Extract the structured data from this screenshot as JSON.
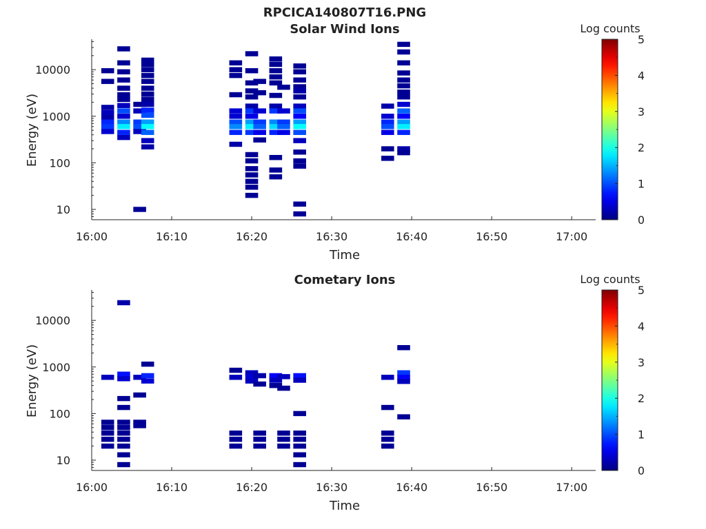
{
  "figure_title": "RPCICA140807T16.PNG",
  "chart_data": [
    {
      "type": "heatmap",
      "title": "Solar Wind Ions",
      "xlabel": "Time",
      "ylabel": "Energy (eV)",
      "yscale": "log",
      "xlim": [
        "16:00",
        "17:03"
      ],
      "ylim": [
        6,
        45000
      ],
      "xticks": [
        "16:00",
        "16:10",
        "16:20",
        "16:30",
        "16:40",
        "16:50",
        "17:00"
      ],
      "yticks": [
        "10",
        "100",
        "1000",
        "10000"
      ],
      "colorbar": {
        "label": "Log counts",
        "min": 0,
        "max": 5,
        "ticks": [
          "0",
          "1",
          "2",
          "3",
          "4",
          "5"
        ],
        "colormap": "jet"
      },
      "bin_minutes": 1.6,
      "cells": [
        {
          "t": "16:02",
          "e": 9500,
          "v": 0.1
        },
        {
          "t": "16:02",
          "e": 5600,
          "v": 0.1
        },
        {
          "t": "16:02",
          "e": 1550,
          "v": 0.2
        },
        {
          "t": "16:02",
          "e": 1200,
          "v": 0.3
        },
        {
          "t": "16:02",
          "e": 950,
          "v": 0.2
        },
        {
          "t": "16:02",
          "e": 750,
          "v": 0.8
        },
        {
          "t": "16:02",
          "e": 600,
          "v": 0.9
        },
        {
          "t": "16:02",
          "e": 470,
          "v": 0.4
        },
        {
          "t": "16:04",
          "e": 28000,
          "v": 0.1
        },
        {
          "t": "16:04",
          "e": 14000,
          "v": 0.1
        },
        {
          "t": "16:04",
          "e": 9000,
          "v": 0.1
        },
        {
          "t": "16:04",
          "e": 6000,
          "v": 0.1
        },
        {
          "t": "16:04",
          "e": 4000,
          "v": 0.1
        },
        {
          "t": "16:04",
          "e": 2900,
          "v": 0.1
        },
        {
          "t": "16:04",
          "e": 2300,
          "v": 0.1
        },
        {
          "t": "16:04",
          "e": 1700,
          "v": 0.3
        },
        {
          "t": "16:04",
          "e": 1300,
          "v": 1.0
        },
        {
          "t": "16:04",
          "e": 1000,
          "v": 0.4
        },
        {
          "t": "16:04",
          "e": 750,
          "v": 1.3
        },
        {
          "t": "16:04",
          "e": 600,
          "v": 1.8
        },
        {
          "t": "16:04",
          "e": 450,
          "v": 0.8
        },
        {
          "t": "16:04",
          "e": 350,
          "v": 0.3
        },
        {
          "t": "16:06",
          "e": 1800,
          "v": 0.1
        },
        {
          "t": "16:06",
          "e": 1300,
          "v": 0.3
        },
        {
          "t": "16:06",
          "e": 750,
          "v": 0.9
        },
        {
          "t": "16:06",
          "e": 600,
          "v": 1.0
        },
        {
          "t": "16:06",
          "e": 470,
          "v": 0.3
        },
        {
          "t": "16:06",
          "e": 10,
          "v": 0.1
        },
        {
          "t": "16:07",
          "e": 16000,
          "v": 0.1
        },
        {
          "t": "16:07",
          "e": 13000,
          "v": 0.1
        },
        {
          "t": "16:07",
          "e": 10000,
          "v": 0.1
        },
        {
          "t": "16:07",
          "e": 7500,
          "v": 0.1
        },
        {
          "t": "16:07",
          "e": 5600,
          "v": 0.1
        },
        {
          "t": "16:07",
          "e": 4000,
          "v": 0.1
        },
        {
          "t": "16:07",
          "e": 3000,
          "v": 0.1
        },
        {
          "t": "16:07",
          "e": 2300,
          "v": 0.1
        },
        {
          "t": "16:07",
          "e": 1800,
          "v": 0.2
        },
        {
          "t": "16:07",
          "e": 1350,
          "v": 0.8
        },
        {
          "t": "16:07",
          "e": 1050,
          "v": 1.0
        },
        {
          "t": "16:07",
          "e": 750,
          "v": 1.4
        },
        {
          "t": "16:07",
          "e": 600,
          "v": 1.9
        },
        {
          "t": "16:07",
          "e": 450,
          "v": 1.1
        },
        {
          "t": "16:07",
          "e": 300,
          "v": 0.3
        },
        {
          "t": "16:07",
          "e": 220,
          "v": 0.2
        },
        {
          "t": "16:18",
          "e": 14000,
          "v": 0.1
        },
        {
          "t": "16:18",
          "e": 10000,
          "v": 0.1
        },
        {
          "t": "16:18",
          "e": 7500,
          "v": 0.1
        },
        {
          "t": "16:18",
          "e": 2900,
          "v": 0.1
        },
        {
          "t": "16:18",
          "e": 1300,
          "v": 0.4
        },
        {
          "t": "16:18",
          "e": 1000,
          "v": 0.4
        },
        {
          "t": "16:18",
          "e": 750,
          "v": 1.0
        },
        {
          "t": "16:18",
          "e": 600,
          "v": 1.3
        },
        {
          "t": "16:18",
          "e": 450,
          "v": 0.8
        },
        {
          "t": "16:18",
          "e": 250,
          "v": 0.2
        },
        {
          "t": "16:20",
          "e": 22000,
          "v": 0.1
        },
        {
          "t": "16:20",
          "e": 9500,
          "v": 0.1
        },
        {
          "t": "16:20",
          "e": 5200,
          "v": 0.1
        },
        {
          "t": "16:20",
          "e": 3500,
          "v": 0.1
        },
        {
          "t": "16:20",
          "e": 2600,
          "v": 0.1
        },
        {
          "t": "16:20",
          "e": 1650,
          "v": 0.2
        },
        {
          "t": "16:20",
          "e": 1300,
          "v": 0.9
        },
        {
          "t": "16:20",
          "e": 1000,
          "v": 0.5
        },
        {
          "t": "16:20",
          "e": 750,
          "v": 1.4
        },
        {
          "t": "16:20",
          "e": 600,
          "v": 1.8
        },
        {
          "t": "16:20",
          "e": 450,
          "v": 0.9
        },
        {
          "t": "16:20",
          "e": 150,
          "v": 0.1
        },
        {
          "t": "16:20",
          "e": 110,
          "v": 0.1
        },
        {
          "t": "16:20",
          "e": 75,
          "v": 0.1
        },
        {
          "t": "16:20",
          "e": 55,
          "v": 0.1
        },
        {
          "t": "16:20",
          "e": 40,
          "v": 0.1
        },
        {
          "t": "16:20",
          "e": 30,
          "v": 0.1
        },
        {
          "t": "16:20",
          "e": 20,
          "v": 0.1
        },
        {
          "t": "16:21",
          "e": 5600,
          "v": 0.1
        },
        {
          "t": "16:21",
          "e": 3200,
          "v": 0.1
        },
        {
          "t": "16:21",
          "e": 1300,
          "v": 0.4
        },
        {
          "t": "16:21",
          "e": 750,
          "v": 0.9
        },
        {
          "t": "16:21",
          "e": 600,
          "v": 1.1
        },
        {
          "t": "16:21",
          "e": 450,
          "v": 0.5
        },
        {
          "t": "16:21",
          "e": 310,
          "v": 0.1
        },
        {
          "t": "16:23",
          "e": 17000,
          "v": 0.1
        },
        {
          "t": "16:23",
          "e": 13000,
          "v": 0.1
        },
        {
          "t": "16:23",
          "e": 9500,
          "v": 0.1
        },
        {
          "t": "16:23",
          "e": 7000,
          "v": 0.1
        },
        {
          "t": "16:23",
          "e": 5200,
          "v": 0.1
        },
        {
          "t": "16:23",
          "e": 2800,
          "v": 0.1
        },
        {
          "t": "16:23",
          "e": 1650,
          "v": 0.2
        },
        {
          "t": "16:23",
          "e": 1300,
          "v": 0.9
        },
        {
          "t": "16:23",
          "e": 750,
          "v": 1.3
        },
        {
          "t": "16:23",
          "e": 600,
          "v": 1.7
        },
        {
          "t": "16:23",
          "e": 450,
          "v": 0.8
        },
        {
          "t": "16:23",
          "e": 130,
          "v": 0.1
        },
        {
          "t": "16:23",
          "e": 70,
          "v": 0.1
        },
        {
          "t": "16:23",
          "e": 50,
          "v": 0.1
        },
        {
          "t": "16:24",
          "e": 4200,
          "v": 0.1
        },
        {
          "t": "16:24",
          "e": 1300,
          "v": 0.4
        },
        {
          "t": "16:24",
          "e": 750,
          "v": 0.9
        },
        {
          "t": "16:24",
          "e": 600,
          "v": 1.1
        },
        {
          "t": "16:24",
          "e": 450,
          "v": 0.5
        },
        {
          "t": "16:26",
          "e": 12000,
          "v": 0.1
        },
        {
          "t": "16:26",
          "e": 9000,
          "v": 0.1
        },
        {
          "t": "16:26",
          "e": 6000,
          "v": 0.1
        },
        {
          "t": "16:26",
          "e": 4300,
          "v": 0.1
        },
        {
          "t": "16:26",
          "e": 3500,
          "v": 0.2
        },
        {
          "t": "16:26",
          "e": 2600,
          "v": 0.1
        },
        {
          "t": "16:26",
          "e": 1650,
          "v": 0.3
        },
        {
          "t": "16:26",
          "e": 1300,
          "v": 1.0
        },
        {
          "t": "16:26",
          "e": 1000,
          "v": 0.6
        },
        {
          "t": "16:26",
          "e": 750,
          "v": 1.4
        },
        {
          "t": "16:26",
          "e": 600,
          "v": 1.9
        },
        {
          "t": "16:26",
          "e": 450,
          "v": 1.0
        },
        {
          "t": "16:26",
          "e": 300,
          "v": 0.3
        },
        {
          "t": "16:26",
          "e": 170,
          "v": 0.1
        },
        {
          "t": "16:26",
          "e": 110,
          "v": 0.1
        },
        {
          "t": "16:26",
          "e": 85,
          "v": 0.1
        },
        {
          "t": "16:26",
          "e": 13,
          "v": 0.1
        },
        {
          "t": "16:26",
          "e": 8,
          "v": 0.1
        },
        {
          "t": "16:37",
          "e": 1650,
          "v": 0.2
        },
        {
          "t": "16:37",
          "e": 1000,
          "v": 0.4
        },
        {
          "t": "16:37",
          "e": 750,
          "v": 0.8
        },
        {
          "t": "16:37",
          "e": 600,
          "v": 1.0
        },
        {
          "t": "16:37",
          "e": 450,
          "v": 0.5
        },
        {
          "t": "16:37",
          "e": 200,
          "v": 0.1
        },
        {
          "t": "16:37",
          "e": 125,
          "v": 0.1
        },
        {
          "t": "16:39",
          "e": 35000,
          "v": 0.1
        },
        {
          "t": "16:39",
          "e": 24000,
          "v": 0.1
        },
        {
          "t": "16:39",
          "e": 14000,
          "v": 0.1
        },
        {
          "t": "16:39",
          "e": 8500,
          "v": 0.1
        },
        {
          "t": "16:39",
          "e": 6000,
          "v": 0.1
        },
        {
          "t": "16:39",
          "e": 4500,
          "v": 0.1
        },
        {
          "t": "16:39",
          "e": 3300,
          "v": 0.1
        },
        {
          "t": "16:39",
          "e": 2600,
          "v": 0.1
        },
        {
          "t": "16:39",
          "e": 1800,
          "v": 0.4
        },
        {
          "t": "16:39",
          "e": 1300,
          "v": 1.1
        },
        {
          "t": "16:39",
          "e": 1000,
          "v": 0.6
        },
        {
          "t": "16:39",
          "e": 750,
          "v": 1.4
        },
        {
          "t": "16:39",
          "e": 600,
          "v": 1.8
        },
        {
          "t": "16:39",
          "e": 450,
          "v": 0.8
        },
        {
          "t": "16:39",
          "e": 200,
          "v": 0.2
        },
        {
          "t": "16:39",
          "e": 165,
          "v": 0.1
        }
      ]
    },
    {
      "type": "heatmap",
      "title": "Cometary Ions",
      "xlabel": "Time",
      "ylabel": "Energy (eV)",
      "yscale": "log",
      "xlim": [
        "16:00",
        "17:03"
      ],
      "ylim": [
        6,
        45000
      ],
      "xticks": [
        "16:00",
        "16:10",
        "16:20",
        "16:30",
        "16:40",
        "16:50",
        "17:00"
      ],
      "yticks": [
        "10",
        "100",
        "1000",
        "10000"
      ],
      "colorbar": {
        "label": "Log counts",
        "min": 0,
        "max": 5,
        "ticks": [
          "0",
          "1",
          "2",
          "3",
          "4",
          "5"
        ],
        "colormap": "jet"
      },
      "bin_minutes": 1.6,
      "cells": [
        {
          "t": "16:02",
          "e": 600,
          "v": 0.3
        },
        {
          "t": "16:02",
          "e": 65,
          "v": 0.1
        },
        {
          "t": "16:02",
          "e": 50,
          "v": 0.1
        },
        {
          "t": "16:02",
          "e": 38,
          "v": 0.1
        },
        {
          "t": "16:02",
          "e": 28,
          "v": 0.1
        },
        {
          "t": "16:02",
          "e": 20,
          "v": 0.1
        },
        {
          "t": "16:04",
          "e": 24000,
          "v": 0.2
        },
        {
          "t": "16:04",
          "e": 700,
          "v": 0.7
        },
        {
          "t": "16:04",
          "e": 560,
          "v": 0.4
        },
        {
          "t": "16:04",
          "e": 210,
          "v": 0.1
        },
        {
          "t": "16:04",
          "e": 135,
          "v": 0.1
        },
        {
          "t": "16:04",
          "e": 65,
          "v": 0.1
        },
        {
          "t": "16:04",
          "e": 50,
          "v": 0.1
        },
        {
          "t": "16:04",
          "e": 38,
          "v": 0.1
        },
        {
          "t": "16:04",
          "e": 28,
          "v": 0.1
        },
        {
          "t": "16:04",
          "e": 20,
          "v": 0.1
        },
        {
          "t": "16:04",
          "e": 13,
          "v": 0.1
        },
        {
          "t": "16:04",
          "e": 8,
          "v": 0.1
        },
        {
          "t": "16:06",
          "e": 600,
          "v": 0.3
        },
        {
          "t": "16:06",
          "e": 250,
          "v": 0.1
        },
        {
          "t": "16:06",
          "e": 65,
          "v": 0.1
        },
        {
          "t": "16:06",
          "e": 55,
          "v": 0.1
        },
        {
          "t": "16:07",
          "e": 1150,
          "v": 0.1
        },
        {
          "t": "16:07",
          "e": 650,
          "v": 0.8
        },
        {
          "t": "16:07",
          "e": 500,
          "v": 0.4
        },
        {
          "t": "16:18",
          "e": 850,
          "v": 0.1
        },
        {
          "t": "16:18",
          "e": 600,
          "v": 0.3
        },
        {
          "t": "16:18",
          "e": 38,
          "v": 0.1
        },
        {
          "t": "16:18",
          "e": 28,
          "v": 0.1
        },
        {
          "t": "16:18",
          "e": 20,
          "v": 0.1
        },
        {
          "t": "16:20",
          "e": 750,
          "v": 0.3
        },
        {
          "t": "16:20",
          "e": 620,
          "v": 0.4
        },
        {
          "t": "16:20",
          "e": 500,
          "v": 0.3
        },
        {
          "t": "16:21",
          "e": 650,
          "v": 0.2
        },
        {
          "t": "16:21",
          "e": 430,
          "v": 0.1
        },
        {
          "t": "16:21",
          "e": 38,
          "v": 0.1
        },
        {
          "t": "16:21",
          "e": 28,
          "v": 0.1
        },
        {
          "t": "16:21",
          "e": 20,
          "v": 0.1
        },
        {
          "t": "16:23",
          "e": 650,
          "v": 0.6
        },
        {
          "t": "16:23",
          "e": 520,
          "v": 0.3
        },
        {
          "t": "16:23",
          "e": 400,
          "v": 0.1
        },
        {
          "t": "16:24",
          "e": 620,
          "v": 0.3
        },
        {
          "t": "16:24",
          "e": 350,
          "v": 0.1
        },
        {
          "t": "16:24",
          "e": 38,
          "v": 0.1
        },
        {
          "t": "16:24",
          "e": 28,
          "v": 0.1
        },
        {
          "t": "16:24",
          "e": 20,
          "v": 0.1
        },
        {
          "t": "16:26",
          "e": 650,
          "v": 0.7
        },
        {
          "t": "16:26",
          "e": 520,
          "v": 0.3
        },
        {
          "t": "16:26",
          "e": 100,
          "v": 0.1
        },
        {
          "t": "16:26",
          "e": 38,
          "v": 0.1
        },
        {
          "t": "16:26",
          "e": 28,
          "v": 0.1
        },
        {
          "t": "16:26",
          "e": 20,
          "v": 0.1
        },
        {
          "t": "16:26",
          "e": 13,
          "v": 0.1
        },
        {
          "t": "16:26",
          "e": 8,
          "v": 0.1
        },
        {
          "t": "16:37",
          "e": 600,
          "v": 0.3
        },
        {
          "t": "16:37",
          "e": 135,
          "v": 0.1
        },
        {
          "t": "16:37",
          "e": 38,
          "v": 0.1
        },
        {
          "t": "16:37",
          "e": 28,
          "v": 0.1
        },
        {
          "t": "16:37",
          "e": 20,
          "v": 0.1
        },
        {
          "t": "16:39",
          "e": 2600,
          "v": 0.1
        },
        {
          "t": "16:39",
          "e": 750,
          "v": 0.9
        },
        {
          "t": "16:39",
          "e": 600,
          "v": 0.6
        },
        {
          "t": "16:39",
          "e": 490,
          "v": 0.3
        },
        {
          "t": "16:39",
          "e": 85,
          "v": 0.1
        }
      ]
    }
  ]
}
